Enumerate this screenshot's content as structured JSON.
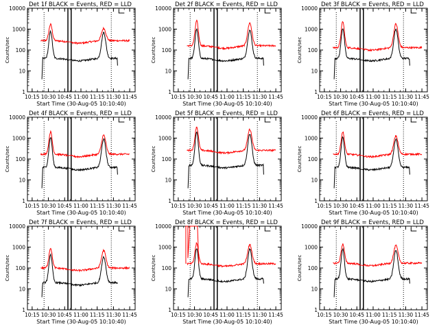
{
  "figure": {
    "y_tick_labels": [
      "1",
      "10",
      "100",
      "1000",
      "10000"
    ],
    "x_tick_labels": [
      "10:15",
      "10:30",
      "10:45",
      "11:00",
      "11:15",
      "11:30",
      "11:45"
    ],
    "ylabel": "Counts/sec",
    "xlabel": "Start Time (30-Aug-05 10:10:40)",
    "colors": {
      "events": "#000000",
      "lld": "#ff0000"
    }
  },
  "chart_data": [
    {
      "type": "line",
      "title": "Det 1f BLACK = Events, RED = LLD",
      "xlabel": "Start Time (30-Aug-05 10:10:40)",
      "ylabel": "Counts/sec",
      "yscale": "log",
      "ylim": [
        1,
        10000
      ],
      "xlim": [
        "10:10:40",
        "11:50:00"
      ],
      "x_ticks": [
        "10:15",
        "10:30",
        "10:45",
        "11:00",
        "11:15",
        "11:30",
        "11:45"
      ],
      "dotted_markers": [
        "10:26",
        "11:28"
      ],
      "gap_interval": [
        "10:48",
        "10:51"
      ],
      "peaks": [
        {
          "time": "10:32",
          "events": 780,
          "lld": 1700
        },
        {
          "time": "11:21",
          "events": 700,
          "lld": 1100
        }
      ],
      "baseline": {
        "events": 40,
        "lld": 280
      },
      "series": [
        {
          "name": "Events",
          "color": "#000000"
        },
        {
          "name": "LLD",
          "color": "#ff0000"
        }
      ]
    },
    {
      "type": "line",
      "title": "Det 2f BLACK = Events, RED = LLD",
      "xlabel": "Start Time (30-Aug-05 10:10:40)",
      "ylabel": "Counts/sec",
      "yscale": "log",
      "ylim": [
        1,
        10000
      ],
      "xlim": [
        "10:10:40",
        "11:50:00"
      ],
      "x_ticks": [
        "10:15",
        "10:30",
        "10:45",
        "11:00",
        "11:15",
        "11:30",
        "11:45"
      ],
      "dotted_markers": [
        "10:26",
        "11:28"
      ],
      "gap_interval": [
        "10:48",
        "10:51"
      ],
      "peaks": [
        {
          "time": "10:32",
          "events": 1000,
          "lld": 2500
        },
        {
          "time": "11:21",
          "events": 900,
          "lld": 2000
        }
      ],
      "baseline": {
        "events": 40,
        "lld": 160
      },
      "series": [
        {
          "name": "Events",
          "color": "#000000"
        },
        {
          "name": "LLD",
          "color": "#ff0000"
        }
      ]
    },
    {
      "type": "line",
      "title": "Det 3f BLACK = Events, RED = LLD",
      "xlabel": "Start Time (30-Aug-05 10:10:40)",
      "ylabel": "Counts/sec",
      "yscale": "log",
      "ylim": [
        1,
        10000
      ],
      "xlim": [
        "10:10:40",
        "11:50:00"
      ],
      "x_ticks": [
        "10:15",
        "10:30",
        "10:45",
        "11:00",
        "11:15",
        "11:30",
        "11:45"
      ],
      "dotted_markers": [
        "10:26",
        "11:28"
      ],
      "gap_interval": [
        "10:48",
        "10:51"
      ],
      "peaks": [
        {
          "time": "10:32",
          "events": 1100,
          "lld": 2300
        },
        {
          "time": "11:21",
          "events": 1000,
          "lld": 1800
        }
      ],
      "baseline": {
        "events": 40,
        "lld": 130
      },
      "series": [
        {
          "name": "Events",
          "color": "#000000"
        },
        {
          "name": "LLD",
          "color": "#ff0000"
        }
      ]
    },
    {
      "type": "line",
      "title": "Det 4f BLACK = Events, RED = LLD",
      "xlabel": "Start Time (30-Aug-05 10:10:40)",
      "ylabel": "Counts/sec",
      "yscale": "log",
      "ylim": [
        1,
        10000
      ],
      "xlim": [
        "10:10:40",
        "11:50:00"
      ],
      "x_ticks": [
        "10:15",
        "10:30",
        "10:45",
        "11:00",
        "11:15",
        "11:30",
        "11:45"
      ],
      "dotted_markers": [
        "10:26",
        "11:28"
      ],
      "gap_interval": [
        "10:48",
        "10:51"
      ],
      "peaks": [
        {
          "time": "10:32",
          "events": 1100,
          "lld": 2000
        },
        {
          "time": "11:21",
          "events": 900,
          "lld": 1400
        }
      ],
      "baseline": {
        "events": 40,
        "lld": 170
      },
      "series": [
        {
          "name": "Events",
          "color": "#000000"
        },
        {
          "name": "LLD",
          "color": "#ff0000"
        }
      ]
    },
    {
      "type": "line",
      "title": "Det 5f BLACK = Events, RED = LLD",
      "xlabel": "Start Time (30-Aug-05 10:10:40)",
      "ylabel": "Counts/sec",
      "yscale": "log",
      "ylim": [
        1,
        10000
      ],
      "xlim": [
        "10:10:40",
        "11:50:00"
      ],
      "x_ticks": [
        "10:15",
        "10:30",
        "10:45",
        "11:00",
        "11:15",
        "11:30",
        "11:45"
      ],
      "dotted_markers": [
        "10:26",
        "11:28"
      ],
      "gap_interval": [
        "10:48",
        "10:51"
      ],
      "peaks": [
        {
          "time": "10:32",
          "events": 2000,
          "lld": 3500
        },
        {
          "time": "11:21",
          "events": 1600,
          "lld": 2600
        }
      ],
      "baseline": {
        "events": 50,
        "lld": 260
      },
      "series": [
        {
          "name": "Events",
          "color": "#000000"
        },
        {
          "name": "LLD",
          "color": "#ff0000"
        }
      ]
    },
    {
      "type": "line",
      "title": "Det 6f BLACK = Events, RED = LLD",
      "xlabel": "Start Time (30-Aug-05 10:10:40)",
      "ylabel": "Counts/sec",
      "yscale": "log",
      "ylim": [
        1,
        10000
      ],
      "xlim": [
        "10:10:40",
        "11:50:00"
      ],
      "x_ticks": [
        "10:15",
        "10:30",
        "10:45",
        "11:00",
        "11:15",
        "11:30",
        "11:45"
      ],
      "dotted_markers": [
        "10:26",
        "11:28"
      ],
      "gap_interval": [
        "10:48",
        "10:51"
      ],
      "peaks": [
        {
          "time": "10:32",
          "events": 1100,
          "lld": 2000
        },
        {
          "time": "11:21",
          "events": 900,
          "lld": 1300
        }
      ],
      "baseline": {
        "events": 40,
        "lld": 170
      },
      "series": [
        {
          "name": "Events",
          "color": "#000000"
        },
        {
          "name": "LLD",
          "color": "#ff0000"
        }
      ]
    },
    {
      "type": "line",
      "title": "Det 7f BLACK = Events, RED = LLD",
      "xlabel": "Start Time (30-Aug-05 10:10:40)",
      "ylabel": "Counts/sec",
      "yscale": "log",
      "ylim": [
        1,
        10000
      ],
      "xlim": [
        "10:10:40",
        "11:50:00"
      ],
      "x_ticks": [
        "10:15",
        "10:30",
        "10:45",
        "11:00",
        "11:15",
        "11:30",
        "11:45"
      ],
      "dotted_markers": [
        "10:26",
        "11:28"
      ],
      "gap_interval": [
        "10:48",
        "10:51"
      ],
      "peaks": [
        {
          "time": "10:32",
          "events": 450,
          "lld": 900
        },
        {
          "time": "11:21",
          "events": 350,
          "lld": 700
        }
      ],
      "baseline": {
        "events": 20,
        "lld": 100
      },
      "series": [
        {
          "name": "Events",
          "color": "#000000"
        },
        {
          "name": "LLD",
          "color": "#ff0000"
        }
      ]
    },
    {
      "type": "line",
      "title": "Det 8f BLACK = Events, RED = LLD",
      "xlabel": "Start Time (30-Aug-05 10:10:40)",
      "ylabel": "Counts/sec",
      "yscale": "log",
      "ylim": [
        1,
        10000
      ],
      "xlim": [
        "10:10:40",
        "11:50:00"
      ],
      "x_ticks": [
        "10:15",
        "10:30",
        "10:45",
        "11:00",
        "11:15",
        "11:30",
        "11:45"
      ],
      "dotted_markers": [
        "10:26",
        "11:28"
      ],
      "gap_interval": [
        "10:48",
        "10:51"
      ],
      "peaks": [
        {
          "time": "10:32",
          "events": 900,
          "lld": 1500
        },
        {
          "time": "11:21",
          "events": 800,
          "lld": 1300
        }
      ],
      "baseline": {
        "events": 30,
        "lld": 160
      },
      "lld_saturation": [
        "10:22",
        "10:34"
      ],
      "series": [
        {
          "name": "Events",
          "color": "#000000"
        },
        {
          "name": "LLD",
          "color": "#ff0000"
        }
      ]
    },
    {
      "type": "line",
      "title": "Det 9f BLACK = Events, RED = LLD",
      "xlabel": "Start Time (30-Aug-05 10:10:40)",
      "ylabel": "Counts/sec",
      "yscale": "log",
      "ylim": [
        1,
        10000
      ],
      "xlim": [
        "10:10:40",
        "11:50:00"
      ],
      "x_ticks": [
        "10:15",
        "10:30",
        "10:45",
        "11:00",
        "11:15",
        "11:30",
        "11:45"
      ],
      "dotted_markers": [
        "10:26",
        "11:28"
      ],
      "gap_interval": [
        "10:48",
        "10:51"
      ],
      "peaks": [
        {
          "time": "10:32",
          "events": 800,
          "lld": 1400
        },
        {
          "time": "11:21",
          "events": 700,
          "lld": 1200
        }
      ],
      "baseline": {
        "events": 30,
        "lld": 170
      },
      "series": [
        {
          "name": "Events",
          "color": "#000000"
        },
        {
          "name": "LLD",
          "color": "#ff0000"
        }
      ]
    }
  ]
}
